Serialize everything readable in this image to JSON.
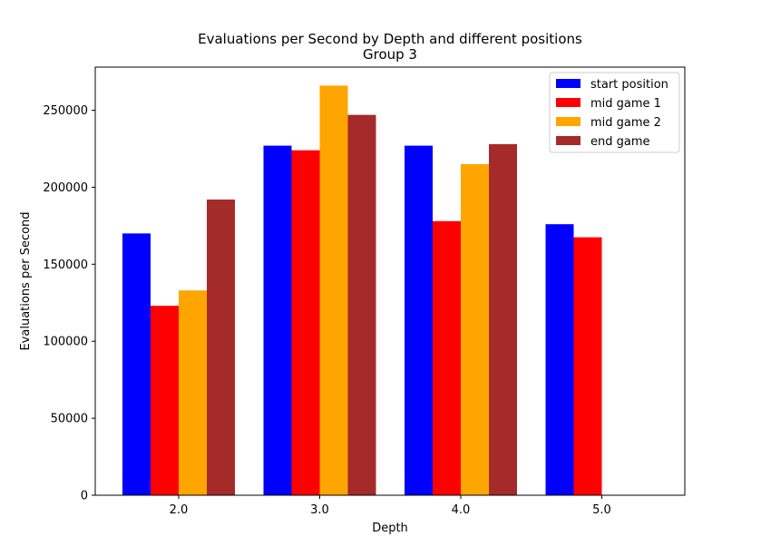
{
  "chart_data": {
    "type": "bar",
    "title": "Evaluations per Second by Depth and different positions",
    "subtitle": "Group 3",
    "xlabel": "Depth",
    "ylabel": "Evaluations per Second",
    "categories": [
      "2.0",
      "3.0",
      "4.0",
      "5.0"
    ],
    "ylim": [
      0,
      278000
    ],
    "yticks": [
      0,
      50000,
      100000,
      150000,
      200000,
      250000
    ],
    "ytick_labels": [
      "0",
      "50000",
      "100000",
      "150000",
      "200000",
      "250000"
    ],
    "grid": false,
    "legend_position": "top-right",
    "series": [
      {
        "name": "start position",
        "color": "#0000ff",
        "values": [
          170000,
          227000,
          227000,
          176000
        ]
      },
      {
        "name": "mid game 1",
        "color": "#ff0000",
        "values": [
          123000,
          224000,
          178000,
          167500
        ]
      },
      {
        "name": "mid game 2",
        "color": "#ffa500",
        "values": [
          133000,
          266000,
          215000,
          null
        ]
      },
      {
        "name": "end game",
        "color": "#a52a2a",
        "values": [
          192000,
          247000,
          228000,
          null
        ]
      }
    ]
  }
}
